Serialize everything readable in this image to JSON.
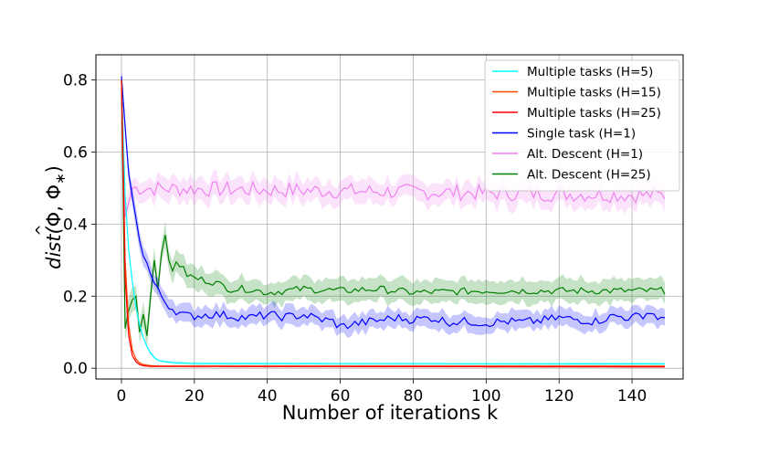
{
  "chart_data": {
    "type": "line",
    "xlabel": "Number of iterations k",
    "ylabel": {
      "prefix": "dist(",
      "phi_hat": "Φ",
      "sep": ", Φ",
      "sub": "∗",
      "suffix": ")"
    },
    "xlim": [
      -7,
      154
    ],
    "ylim": [
      -0.03,
      0.87
    ],
    "x_ticks": [
      0,
      20,
      40,
      60,
      80,
      100,
      120,
      140
    ],
    "y_ticks": [
      0.0,
      0.2,
      0.4,
      0.6,
      0.8
    ],
    "x_tick_labels": [
      "0",
      "20",
      "40",
      "60",
      "80",
      "100",
      "120",
      "140"
    ],
    "y_tick_labels": [
      "0.0",
      "0.2",
      "0.4",
      "0.6",
      "0.8"
    ],
    "grid": true,
    "legend_position": "top-right",
    "x_range": [
      0,
      149
    ],
    "series": [
      {
        "name": "Multiple tasks (H=5)",
        "color": "#00ffff",
        "start": 0.8,
        "points": [
          [
            0,
            0.8
          ],
          [
            1,
            0.48
          ],
          [
            2,
            0.33
          ],
          [
            3,
            0.24
          ],
          [
            4,
            0.17
          ],
          [
            5,
            0.12
          ],
          [
            6,
            0.085
          ],
          [
            7,
            0.06
          ],
          [
            8,
            0.042
          ],
          [
            9,
            0.03
          ],
          [
            10,
            0.022
          ],
          [
            12,
            0.018
          ],
          [
            15,
            0.015
          ],
          [
            20,
            0.013
          ],
          [
            149,
            0.012
          ]
        ],
        "band": 0.003
      },
      {
        "name": "Multiple tasks (H=15)",
        "color": "#ff4500",
        "points": [
          [
            0,
            0.8
          ],
          [
            1,
            0.3
          ],
          [
            2,
            0.12
          ],
          [
            3,
            0.05
          ],
          [
            4,
            0.025
          ],
          [
            5,
            0.015
          ],
          [
            6,
            0.01
          ],
          [
            8,
            0.007
          ],
          [
            10,
            0.006
          ],
          [
            149,
            0.006
          ]
        ],
        "band": 0.002
      },
      {
        "name": "Multiple tasks (H=25)",
        "color": "#ff0000",
        "points": [
          [
            0,
            0.8
          ],
          [
            1,
            0.25
          ],
          [
            2,
            0.09
          ],
          [
            3,
            0.035
          ],
          [
            4,
            0.018
          ],
          [
            5,
            0.01
          ],
          [
            6,
            0.007
          ],
          [
            8,
            0.005
          ],
          [
            149,
            0.004
          ]
        ],
        "band": 0.002
      },
      {
        "name": "Single task (H=1)",
        "color": "#0000ff",
        "points": [
          [
            0,
            0.8
          ],
          [
            1,
            0.66
          ],
          [
            2,
            0.55
          ],
          [
            3,
            0.47
          ],
          [
            4,
            0.41
          ],
          [
            5,
            0.36
          ],
          [
            6,
            0.32
          ],
          [
            7,
            0.29
          ],
          [
            8,
            0.26
          ],
          [
            9,
            0.235
          ],
          [
            10,
            0.215
          ],
          [
            11,
            0.2
          ],
          [
            12,
            0.185
          ],
          [
            13,
            0.175
          ],
          [
            14,
            0.165
          ],
          [
            15,
            0.16
          ],
          [
            16,
            0.153
          ],
          [
            17,
            0.148
          ],
          [
            18,
            0.145
          ],
          [
            20,
            0.145
          ],
          [
            25,
            0.15
          ],
          [
            30,
            0.145
          ],
          [
            35,
            0.14
          ],
          [
            40,
            0.148
          ],
          [
            45,
            0.142
          ],
          [
            50,
            0.148
          ],
          [
            55,
            0.135
          ],
          [
            58,
            0.13
          ],
          [
            60,
            0.115
          ],
          [
            65,
            0.125
          ],
          [
            70,
            0.132
          ],
          [
            75,
            0.14
          ],
          [
            80,
            0.135
          ],
          [
            85,
            0.14
          ],
          [
            90,
            0.128
          ],
          [
            95,
            0.13
          ],
          [
            100,
            0.125
          ],
          [
            105,
            0.13
          ],
          [
            110,
            0.128
          ],
          [
            115,
            0.132
          ],
          [
            120,
            0.14
          ],
          [
            125,
            0.135
          ],
          [
            130,
            0.13
          ],
          [
            135,
            0.145
          ],
          [
            140,
            0.14
          ],
          [
            145,
            0.155
          ],
          [
            149,
            0.13
          ]
        ],
        "band": 0.02,
        "noise": 0.012
      },
      {
        "name": "Alt. Descent (H=1)",
        "color": "#ee82ee",
        "points": [
          [
            0,
            0.8
          ],
          [
            1,
            0.42
          ],
          [
            2,
            0.46
          ],
          [
            3,
            0.5
          ],
          [
            149,
            0.48
          ]
        ],
        "band": 0.025,
        "noise": 0.022,
        "noise_from": 3
      },
      {
        "name": "Alt. Descent (H=25)",
        "color": "#008000",
        "points": [
          [
            0,
            0.8
          ],
          [
            1,
            0.11
          ],
          [
            2,
            0.16
          ],
          [
            3,
            0.19
          ],
          [
            4,
            0.2
          ],
          [
            5,
            0.1
          ],
          [
            6,
            0.15
          ],
          [
            7,
            0.09
          ],
          [
            8,
            0.2
          ],
          [
            9,
            0.3
          ],
          [
            10,
            0.22
          ],
          [
            11,
            0.32
          ],
          [
            12,
            0.37
          ],
          [
            13,
            0.3
          ],
          [
            14,
            0.27
          ],
          [
            15,
            0.3
          ],
          [
            18,
            0.26
          ],
          [
            20,
            0.25
          ],
          [
            25,
            0.24
          ],
          [
            30,
            0.22
          ],
          [
            35,
            0.22
          ],
          [
            40,
            0.21
          ],
          [
            50,
            0.22
          ],
          [
            60,
            0.215
          ],
          [
            70,
            0.22
          ],
          [
            80,
            0.21
          ],
          [
            100,
            0.215
          ],
          [
            120,
            0.215
          ],
          [
            149,
            0.215
          ]
        ],
        "band": 0.025,
        "noise": 0.01,
        "noise_from": 15
      }
    ]
  }
}
